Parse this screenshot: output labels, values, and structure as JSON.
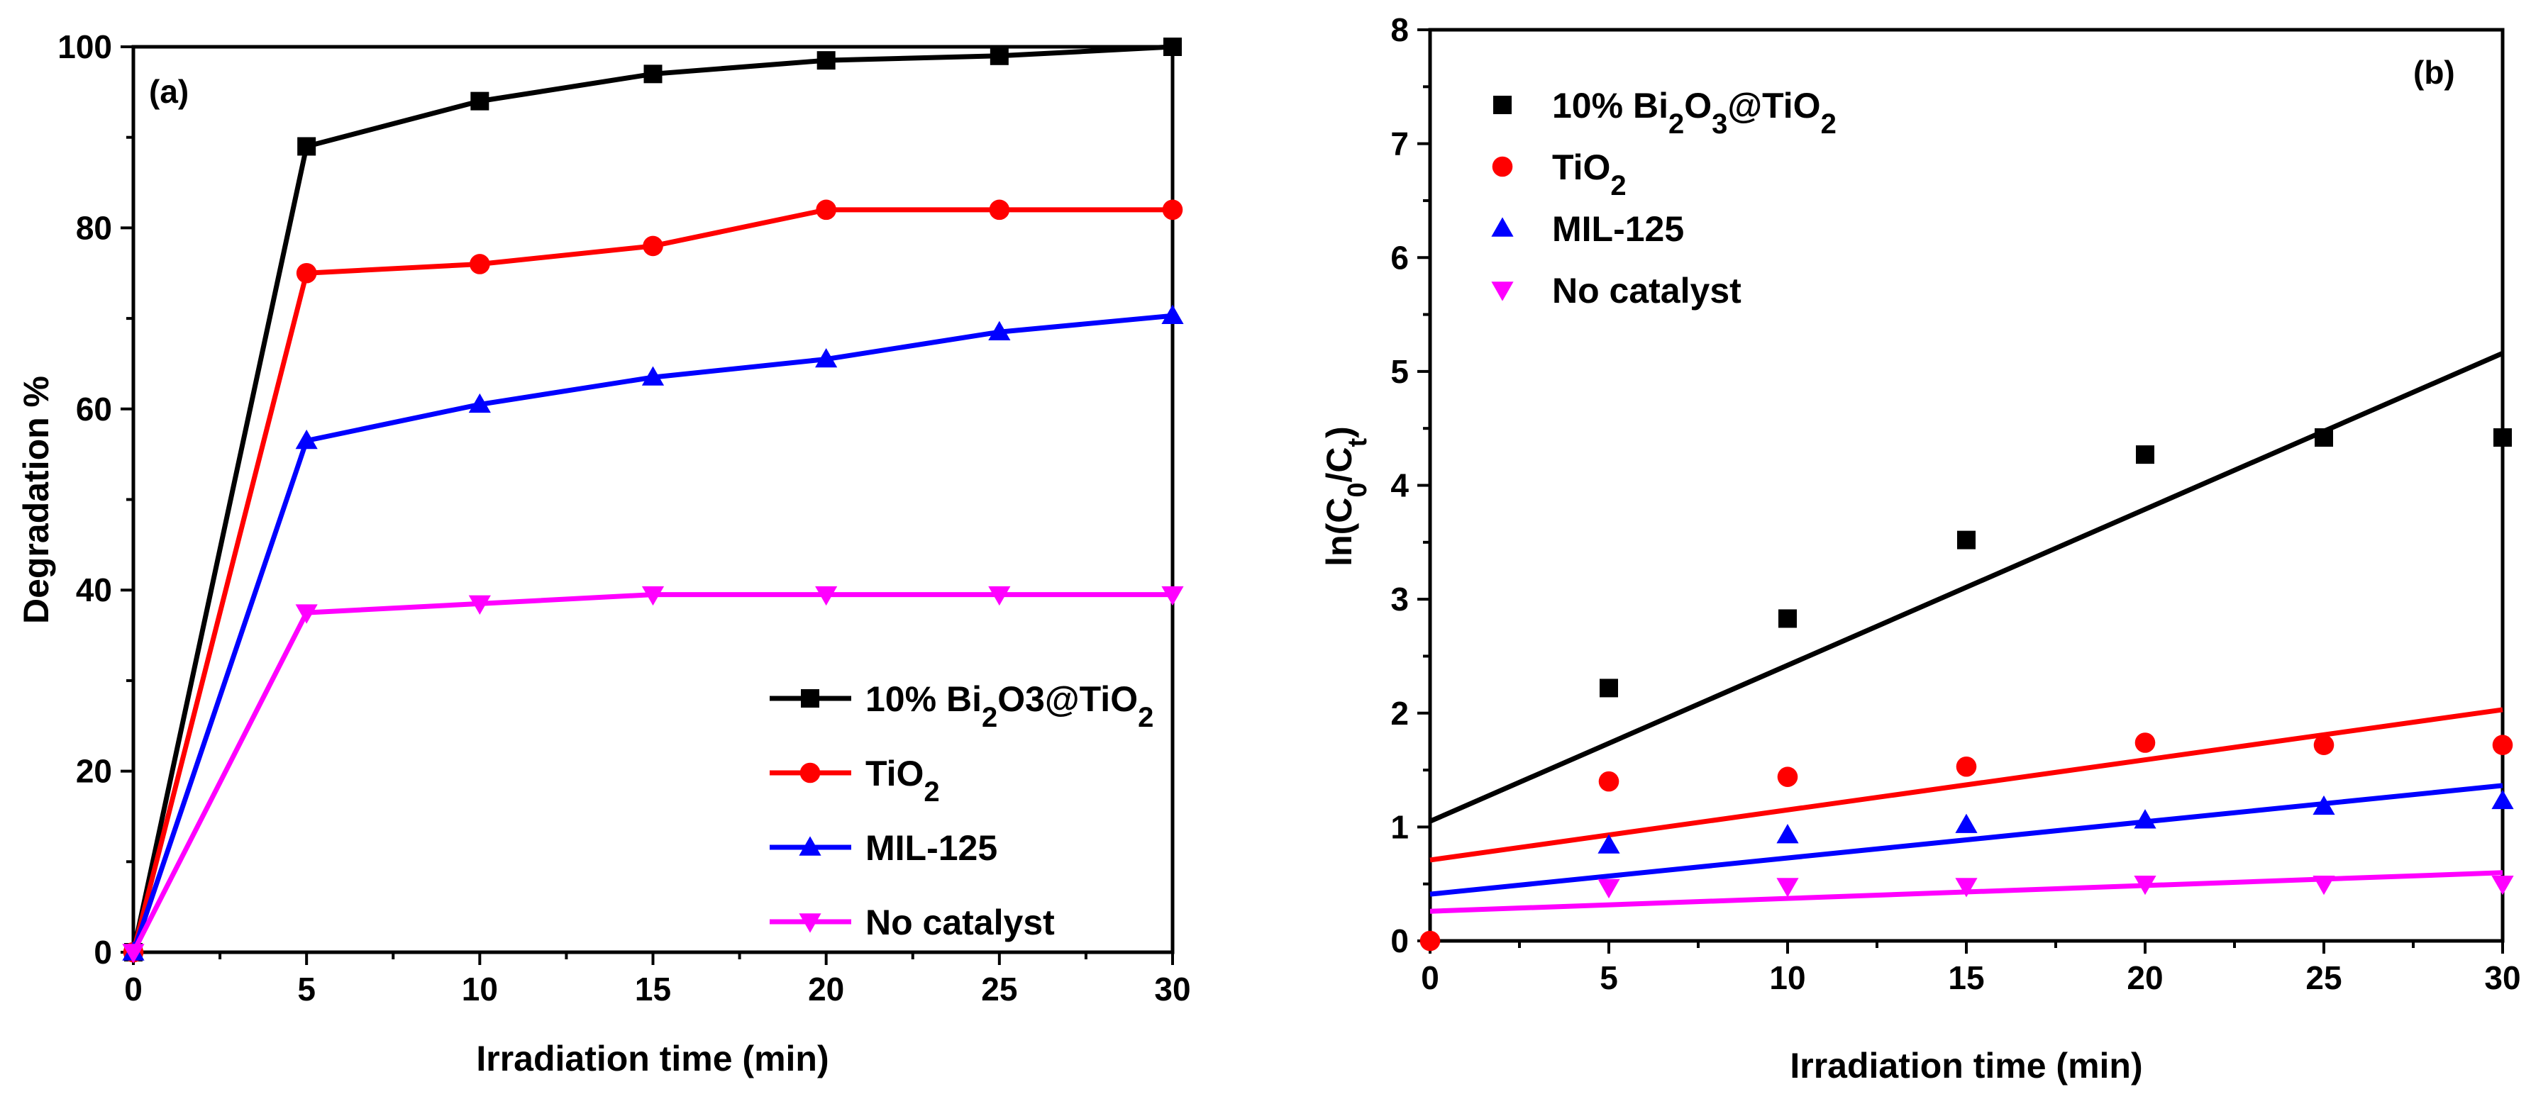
{
  "chart_data": [
    {
      "type": "line",
      "panel_label": "(a)",
      "xlabel": "Irradiation time (min)",
      "ylabel": "Degradation %",
      "xlim": [
        0,
        30
      ],
      "ylim": [
        0,
        100
      ],
      "xticks": [
        "0",
        "5",
        "10",
        "15",
        "20",
        "25",
        "30"
      ],
      "yticks": [
        "0",
        "20",
        "40",
        "60",
        "80",
        "100"
      ],
      "legend_position": "bottom-right",
      "series": [
        {
          "name": "10% Bi2O3@TiO2",
          "legend": {
            "pre": "10% Bi",
            "sub1": "2",
            "mid": "O3@TiO",
            "sub2": "2"
          },
          "color": "#000000",
          "marker": "square",
          "x": [
            0,
            5,
            10,
            15,
            20,
            25,
            30
          ],
          "values": [
            0,
            89,
            94,
            97,
            98.5,
            99,
            100
          ]
        },
        {
          "name": "TiO2",
          "legend": {
            "pre": "TiO",
            "sub1": "2",
            "mid": "",
            "sub2": ""
          },
          "color": "#ff0000",
          "marker": "circle",
          "x": [
            0,
            5,
            10,
            15,
            20,
            25,
            30
          ],
          "values": [
            0,
            75,
            76,
            78,
            82,
            82,
            82
          ]
        },
        {
          "name": "MIL-125",
          "legend": {
            "pre": "MIL-125",
            "sub1": "",
            "mid": "",
            "sub2": ""
          },
          "color": "#0000ff",
          "marker": "triangle-up",
          "x": [
            0,
            5,
            10,
            15,
            20,
            25,
            30
          ],
          "values": [
            0,
            56.5,
            60.5,
            63.5,
            65.5,
            68.5,
            70.3
          ]
        },
        {
          "name": "No catalyst",
          "legend": {
            "pre": "No catalyst",
            "sub1": "",
            "mid": "",
            "sub2": ""
          },
          "color": "#ff00ff",
          "marker": "triangle-down",
          "x": [
            0,
            5,
            10,
            15,
            20,
            25,
            30
          ],
          "values": [
            0,
            37.5,
            38.5,
            39.5,
            39.5,
            39.5,
            39.5
          ]
        }
      ]
    },
    {
      "type": "scatter",
      "panel_label": "(b)",
      "xlabel": "Irradiation time (min)",
      "ylabel": {
        "pre": "ln(C",
        "sub1": "0",
        "mid": "/C",
        "sub2": "t",
        "post": ")"
      },
      "xlim": [
        0,
        30
      ],
      "ylim": [
        0,
        8
      ],
      "xticks": [
        "0",
        "5",
        "10",
        "15",
        "20",
        "25",
        "30"
      ],
      "yticks": [
        "0",
        "1",
        "2",
        "3",
        "4",
        "5",
        "6",
        "7",
        "8"
      ],
      "legend_position": "top-left",
      "series": [
        {
          "name": "10% Bi2O3@TiO2",
          "legend": {
            "pre": "10% Bi",
            "sub1": "2",
            "mid": "O",
            "sub2": "3",
            "mid2": "@TiO",
            "sub3": "2"
          },
          "color": "#000000",
          "marker": "square",
          "x": [
            5,
            10,
            15,
            20,
            25,
            30
          ],
          "values": [
            2.22,
            2.83,
            3.52,
            4.27,
            4.42,
            4.42
          ],
          "fit": {
            "intercept": 1.05,
            "slope": 0.137
          }
        },
        {
          "name": "TiO2",
          "legend": {
            "pre": "TiO",
            "sub1": "2"
          },
          "color": "#ff0000",
          "marker": "circle",
          "x": [
            0,
            5,
            10,
            15,
            20,
            25,
            30
          ],
          "values": [
            0,
            1.4,
            1.44,
            1.53,
            1.74,
            1.72,
            1.72
          ],
          "fit": {
            "intercept": 0.71,
            "slope": 0.044
          }
        },
        {
          "name": "MIL-125",
          "legend": {
            "pre": "MIL-125"
          },
          "color": "#0000ff",
          "marker": "triangle-up",
          "x": [
            5,
            10,
            15,
            20,
            25,
            30
          ],
          "values": [
            0.84,
            0.93,
            1.02,
            1.06,
            1.18,
            1.23
          ],
          "fit": {
            "intercept": 0.41,
            "slope": 0.0318
          }
        },
        {
          "name": "No catalyst",
          "legend": {
            "pre": "No catalyst"
          },
          "color": "#ff00ff",
          "marker": "triangle-down",
          "x": [
            5,
            10,
            15,
            20,
            25,
            30
          ],
          "values": [
            0.47,
            0.48,
            0.48,
            0.5,
            0.5,
            0.5
          ],
          "fit": {
            "intercept": 0.26,
            "slope": 0.0113
          }
        }
      ]
    }
  ]
}
